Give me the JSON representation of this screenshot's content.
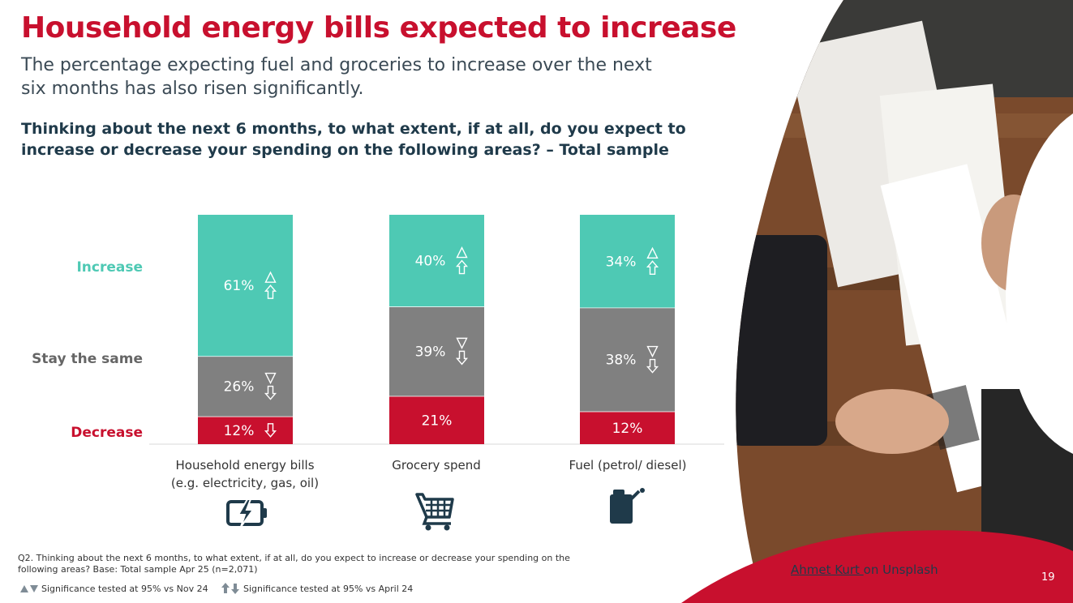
{
  "header": {
    "title": "Household energy bills expected to increase",
    "subtitle": "The percentage expecting fuel and groceries to increase over the next six months has also risen significantly.",
    "question": "Thinking about the next 6 months, to what extent, if at all, do you expect to increase or decrease your spending on the following areas? – Total sample"
  },
  "chart_data": {
    "type": "bar",
    "stacked": true,
    "categories": [
      "Household energy bills (e.g. electricity, gas, oil)",
      "Grocery spend",
      "Fuel (petrol/ diesel)"
    ],
    "category_lines": [
      [
        "Household energy bills",
        "(e.g. electricity, gas, oil)"
      ],
      [
        "Grocery spend"
      ],
      [
        "Fuel (petrol/ diesel)"
      ]
    ],
    "series": [
      {
        "name": "Decrease",
        "color": "#c8102e",
        "values": [
          12,
          21,
          12
        ],
        "labels": [
          "12%",
          "21%",
          "12%"
        ],
        "sig_nov": [
          null,
          null,
          null
        ],
        "sig_apr": [
          "down",
          null,
          null
        ]
      },
      {
        "name": "Stay the same",
        "color": "#808080",
        "values": [
          26,
          39,
          38
        ],
        "labels": [
          "26%",
          "39%",
          "38%"
        ],
        "sig_nov": [
          "down",
          "down",
          "down"
        ],
        "sig_apr": [
          "down",
          "down",
          "down"
        ]
      },
      {
        "name": "Increase",
        "color": "#4ec9b4",
        "values": [
          61,
          40,
          34
        ],
        "labels": [
          "61%",
          "40%",
          "34%"
        ],
        "sig_nov": [
          "up",
          "up",
          "up"
        ],
        "sig_apr": [
          "up",
          "up",
          "up"
        ]
      }
    ],
    "ylim": [
      0,
      100
    ],
    "legend_position": "left"
  },
  "icons": [
    "battery-charging-icon",
    "shopping-cart-icon",
    "fuel-can-icon"
  ],
  "footnote": "Q2. Thinking about the next 6 months, to what extent, if at all, do you expect to increase or decrease your spending on the following areas? Base: Total sample Apr 25 (n=2,071)",
  "legend": {
    "nov_text": "Significance tested at 95% vs Nov 24",
    "apr_text": "Significance tested at 95% vs April 24"
  },
  "credit": {
    "author": "Ahmet Kurt ",
    "suffix": "on Unsplash"
  },
  "page_number": "19",
  "colors": {
    "brand_red": "#c8102e",
    "teal": "#4ec9b4",
    "grey": "#808080",
    "dark_navy": "#1f3a4a"
  }
}
